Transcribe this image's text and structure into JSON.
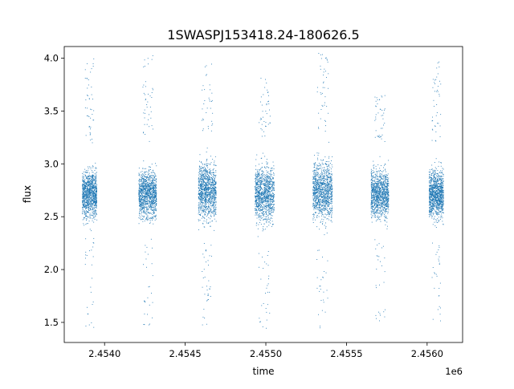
{
  "chart_data": {
    "type": "scatter",
    "title": "1SWASPJ153418.24-180626.5",
    "xlabel": "time",
    "ylabel": "flux",
    "x_offset_label": "1e6",
    "xlim": [
      2453750,
      2456220
    ],
    "ylim": [
      1.31,
      4.11
    ],
    "x_ticks": [
      {
        "value": 2454000,
        "label": "2.4540"
      },
      {
        "value": 2454500,
        "label": "2.4545"
      },
      {
        "value": 2455000,
        "label": "2.4550"
      },
      {
        "value": 2455500,
        "label": "2.4555"
      },
      {
        "value": 2456000,
        "label": "2.4560"
      }
    ],
    "y_ticks": [
      {
        "value": 1.5,
        "label": "1.5"
      },
      {
        "value": 2.0,
        "label": "2.0"
      },
      {
        "value": 2.5,
        "label": "2.5"
      },
      {
        "value": 3.0,
        "label": "3.0"
      },
      {
        "value": 3.5,
        "label": "3.5"
      },
      {
        "value": 4.0,
        "label": "4.0"
      }
    ],
    "grid": false,
    "series": [
      {
        "marker_color": "#1f77b4",
        "clusters": [
          {
            "x_start": 2453860,
            "x_end": 2453950,
            "y_center": 2.72,
            "y_core_min": 2.3,
            "y_core_max": 3.2,
            "y_min": 1.43,
            "y_max": 4.01
          },
          {
            "x_start": 2454210,
            "x_end": 2454320,
            "y_center": 2.72,
            "y_core_min": 2.3,
            "y_core_max": 3.2,
            "y_min": 1.45,
            "y_max": 4.03
          },
          {
            "x_start": 2454580,
            "x_end": 2454690,
            "y_center": 2.75,
            "y_core_min": 2.25,
            "y_core_max": 3.3,
            "y_min": 1.47,
            "y_max": 3.97
          },
          {
            "x_start": 2454930,
            "x_end": 2455050,
            "y_center": 2.72,
            "y_core_min": 2.2,
            "y_core_max": 3.25,
            "y_min": 1.43,
            "y_max": 3.85
          },
          {
            "x_start": 2455290,
            "x_end": 2455410,
            "y_center": 2.75,
            "y_core_min": 2.2,
            "y_core_max": 3.3,
            "y_min": 1.45,
            "y_max": 4.05
          },
          {
            "x_start": 2455650,
            "x_end": 2455760,
            "y_center": 2.72,
            "y_core_min": 2.3,
            "y_core_max": 3.2,
            "y_min": 1.5,
            "y_max": 3.65
          },
          {
            "x_start": 2456010,
            "x_end": 2456100,
            "y_center": 2.72,
            "y_core_min": 2.3,
            "y_core_max": 3.2,
            "y_min": 1.5,
            "y_max": 3.97
          }
        ]
      }
    ]
  }
}
